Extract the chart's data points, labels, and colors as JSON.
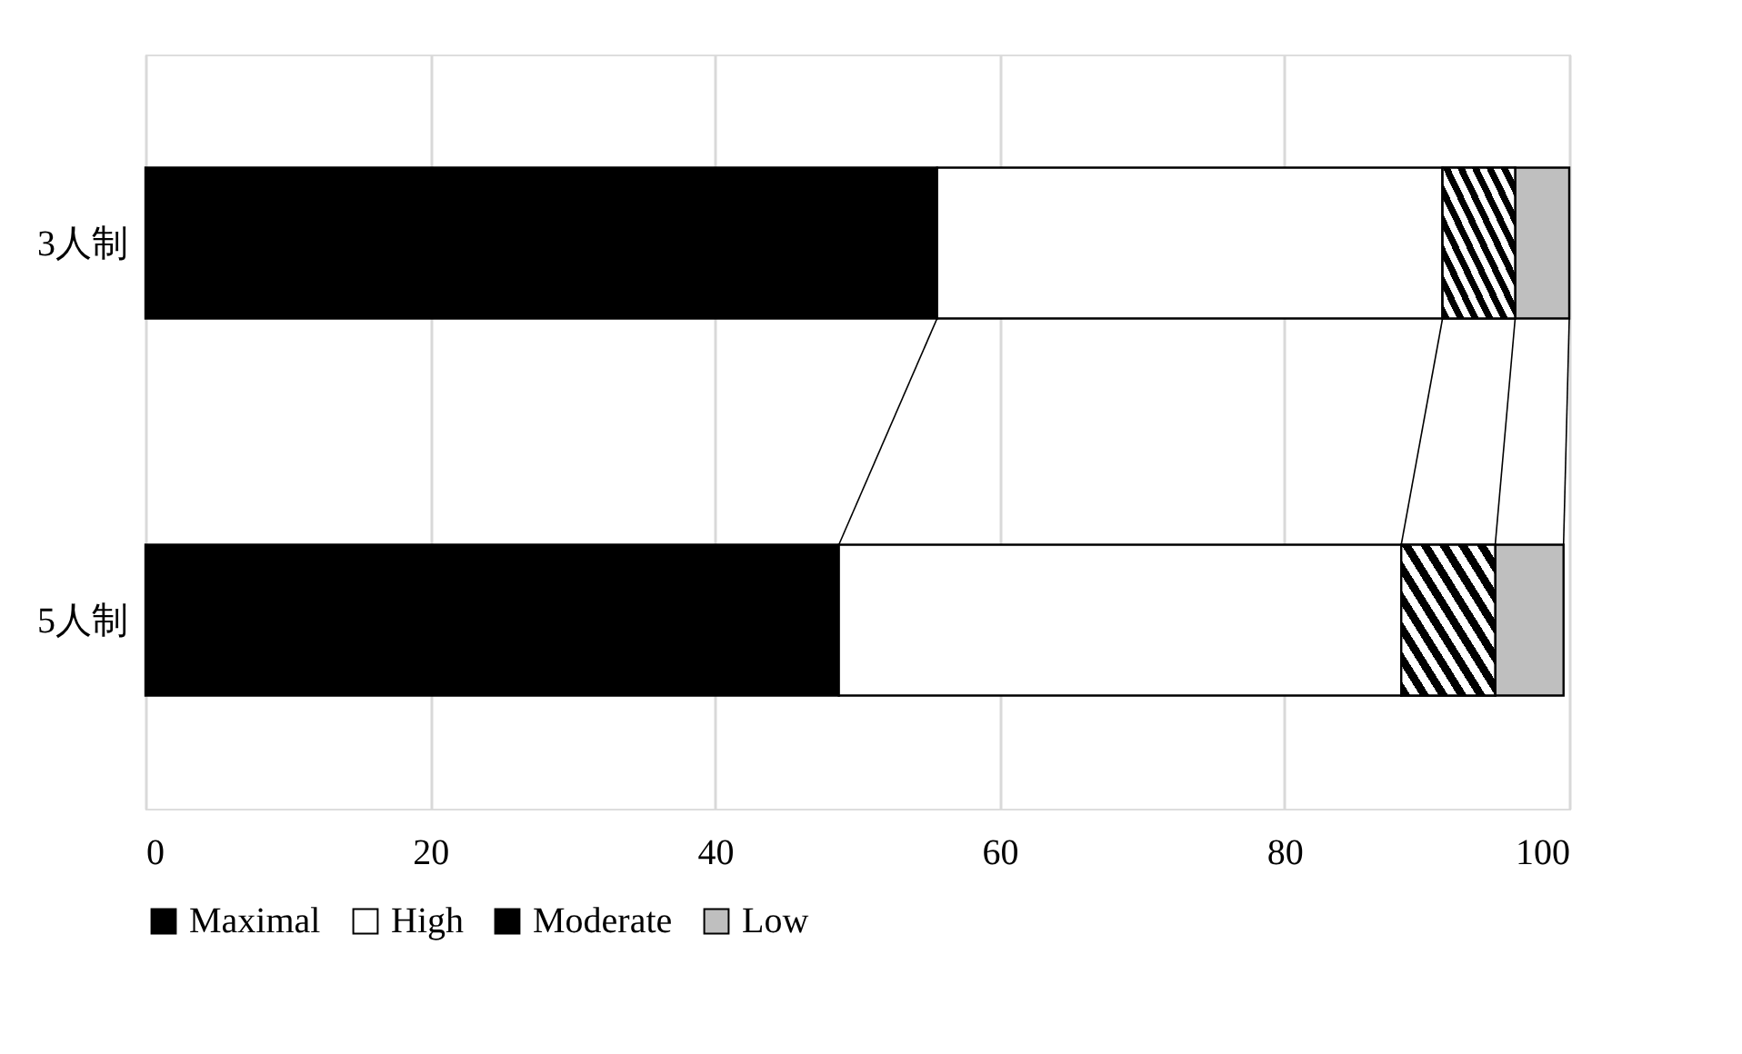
{
  "chart_data": {
    "type": "bar",
    "orientation": "horizontal",
    "stacked": true,
    "categories": [
      "3人制",
      "5人制"
    ],
    "series": [
      {
        "name": "Maximal",
        "color": "#000000",
        "values": [
          55.6,
          48.7
        ]
      },
      {
        "name": "High",
        "color": "#ffffff",
        "values": [
          35.5,
          39.5
        ]
      },
      {
        "name": "Moderate",
        "color": "#000000",
        "values": [
          5.1,
          6.6
        ]
      },
      {
        "name": "Low",
        "color": "#bfbfbf",
        "values": [
          3.8,
          4.8
        ]
      }
    ],
    "xlim": [
      0,
      100
    ],
    "xticks": [
      0,
      20,
      40,
      60,
      80,
      100
    ],
    "grid": "x",
    "legend": "bottom"
  }
}
